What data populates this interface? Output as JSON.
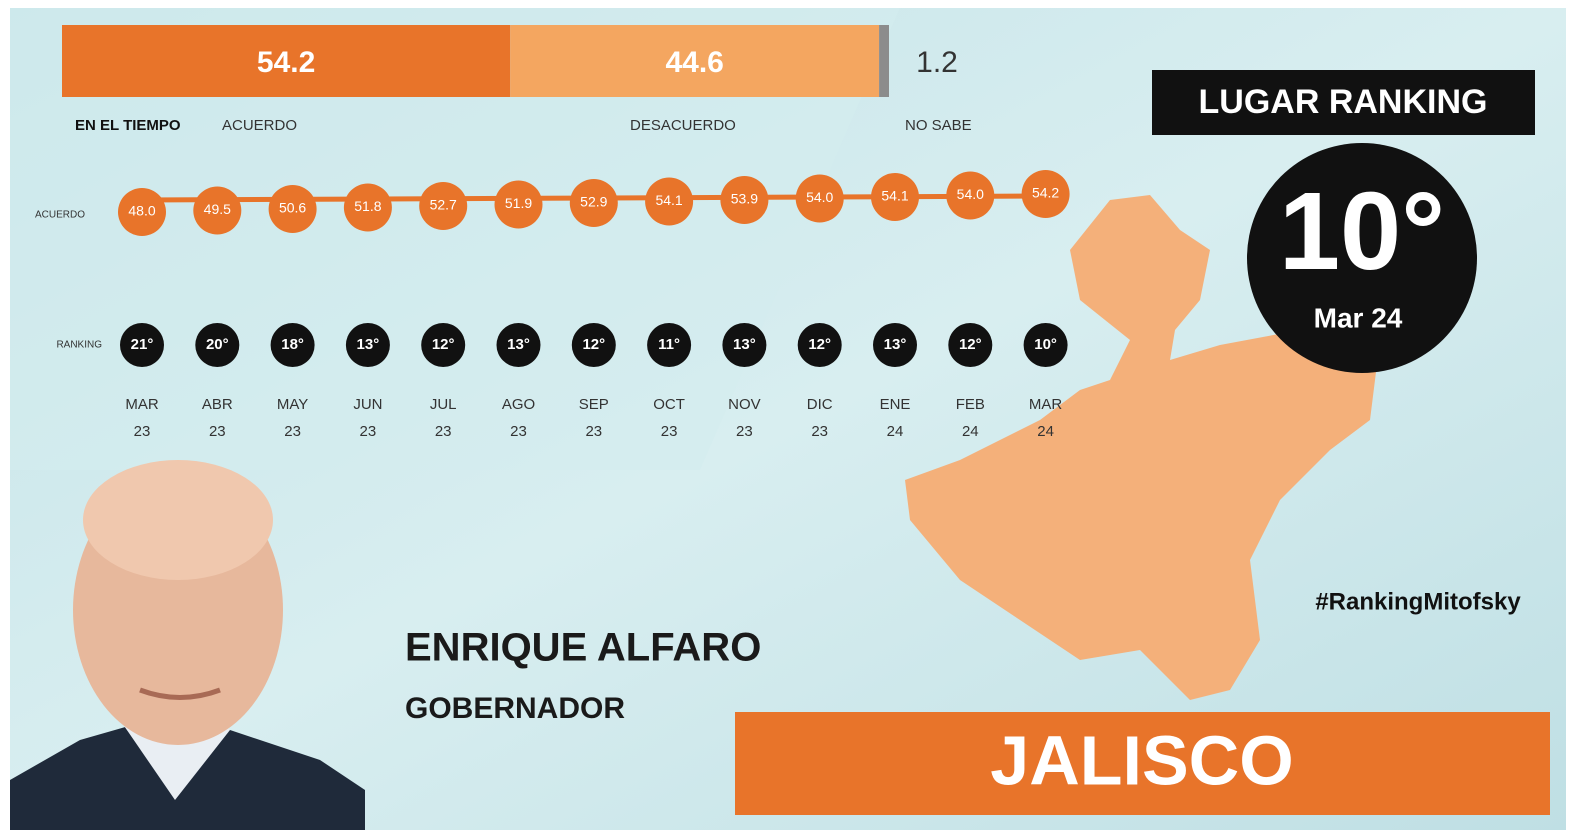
{
  "approval_bar": {
    "segments": [
      {
        "label": "ACUERDO",
        "value": 54.2,
        "color": "#e8742a"
      },
      {
        "label": "DESACUERDO",
        "value": 44.6,
        "color": "#f4a660"
      },
      {
        "label": "NO SABE",
        "value": 1.2,
        "color": "#8c8c8c"
      }
    ]
  },
  "timeline": {
    "title": "EN EL TIEMPO",
    "row_labels": {
      "acuerdo": "ACUERDO",
      "ranking": "RANKING"
    },
    "points": [
      {
        "month": "MAR",
        "year": "23",
        "acuerdo": "48.0",
        "ranking": "21°"
      },
      {
        "month": "ABR",
        "year": "23",
        "acuerdo": "49.5",
        "ranking": "20°"
      },
      {
        "month": "MAY",
        "year": "23",
        "acuerdo": "50.6",
        "ranking": "18°"
      },
      {
        "month": "JUN",
        "year": "23",
        "acuerdo": "51.8",
        "ranking": "13°"
      },
      {
        "month": "JUL",
        "year": "23",
        "acuerdo": "52.7",
        "ranking": "12°"
      },
      {
        "month": "AGO",
        "year": "23",
        "acuerdo": "51.9",
        "ranking": "13°"
      },
      {
        "month": "SEP",
        "year": "23",
        "acuerdo": "52.9",
        "ranking": "12°"
      },
      {
        "month": "OCT",
        "year": "23",
        "acuerdo": "54.1",
        "ranking": "11°"
      },
      {
        "month": "NOV",
        "year": "23",
        "acuerdo": "53.9",
        "ranking": "13°"
      },
      {
        "month": "DIC",
        "year": "23",
        "acuerdo": "54.0",
        "ranking": "12°"
      },
      {
        "month": "ENE",
        "year": "24",
        "acuerdo": "54.1",
        "ranking": "13°"
      },
      {
        "month": "FEB",
        "year": "24",
        "acuerdo": "54.0",
        "ranking": "12°"
      },
      {
        "month": "MAR",
        "year": "24",
        "acuerdo": "54.2",
        "ranking": "10°"
      }
    ]
  },
  "ranking_box": {
    "title": "LUGAR RANKING",
    "value": "10°",
    "date": "Mar 24"
  },
  "hashtag": "#RankingMitofsky",
  "person": {
    "name": "ENRIQUE ALFARO",
    "role": "GOBERNADOR"
  },
  "state": "JALISCO"
}
